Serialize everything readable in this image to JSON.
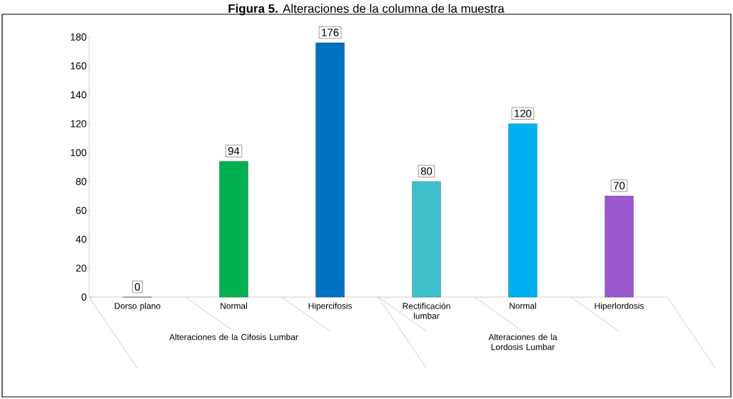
{
  "chart_data": {
    "type": "bar",
    "title": "**Figura 5.** Alteraciones de la columna de la muestra",
    "categories": [
      "Dorso plano",
      "Normal",
      "Hipercifosis",
      "Rectificación lumbar",
      "Normal",
      "Hiperlordosis"
    ],
    "values": [
      0,
      94,
      176,
      80,
      120,
      70
    ],
    "colors": [
      "#4f6228",
      "#00b050",
      "#0070c0",
      "#40c0cc",
      "#00b0f0",
      "#9b59d0"
    ],
    "ylim": [
      0,
      180
    ],
    "yticks": [
      0,
      20,
      40,
      60,
      80,
      100,
      120,
      140,
      160,
      180
    ],
    "data_labels": true,
    "annotations": [
      "Alteraciones de la Cifosis Lumbar",
      "Alteraciones de la Lordosis Lumbar"
    ]
  }
}
